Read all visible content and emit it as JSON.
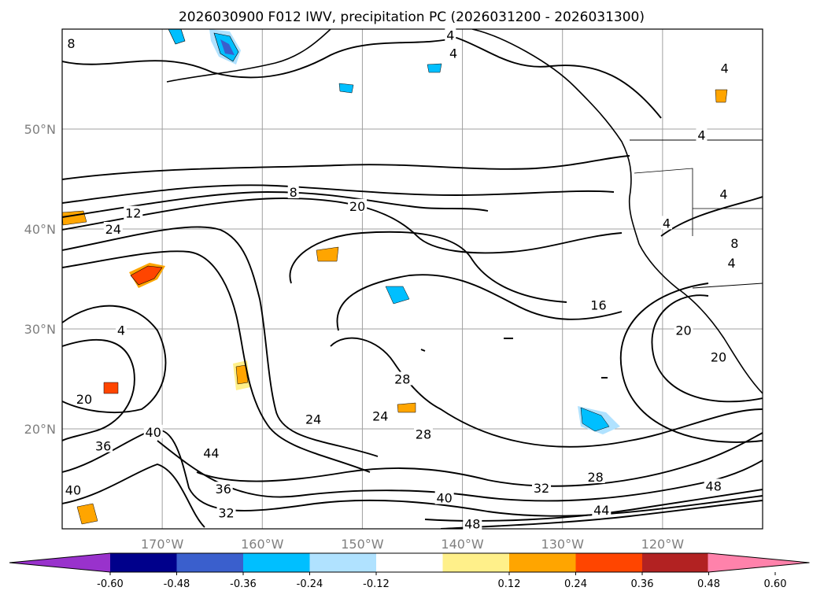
{
  "chart_data": {
    "type": "contour-map",
    "title": "2026030900 F012 IWV, precipitation PC (2026031200 - 2026031300)",
    "map": {
      "lon_range": [
        -180,
        -110
      ],
      "lat_range": [
        10,
        60
      ],
      "lon_ticks": [
        -170,
        -160,
        -150,
        -140,
        -130,
        -120
      ],
      "lat_ticks": [
        20,
        30,
        40,
        50
      ],
      "lon_tick_labels": [
        "170°W",
        "160°W",
        "150°W",
        "140°W",
        "130°W",
        "120°W"
      ],
      "lat_tick_labels": [
        "20°N",
        "30°N",
        "40°N",
        "50°N"
      ],
      "grid": true
    },
    "iwv_contour_labels": [
      {
        "text": "8",
        "lon": -179.1,
        "lat": 58.6
      },
      {
        "text": "4",
        "lon": -141.2,
        "lat": 59.4
      },
      {
        "text": "4",
        "lon": -140.9,
        "lat": 57.6
      },
      {
        "text": "4",
        "lon": -113.8,
        "lat": 56.1
      },
      {
        "text": "4",
        "lon": -116.1,
        "lat": 49.4
      },
      {
        "text": "4",
        "lon": -113.9,
        "lat": 43.5
      },
      {
        "text": "4",
        "lon": -119.6,
        "lat": 40.6
      },
      {
        "text": "8",
        "lon": -112.8,
        "lat": 38.6
      },
      {
        "text": "4",
        "lon": -113.1,
        "lat": 36.6
      },
      {
        "text": "8",
        "lon": -156.9,
        "lat": 43.7
      },
      {
        "text": "20",
        "lon": -150.5,
        "lat": 42.3
      },
      {
        "text": "12",
        "lon": -172.9,
        "lat": 41.6
      },
      {
        "text": "24",
        "lon": -174.9,
        "lat": 40.0
      },
      {
        "text": "16",
        "lon": -126.4,
        "lat": 32.4
      },
      {
        "text": "20",
        "lon": -117.9,
        "lat": 29.9
      },
      {
        "text": "20",
        "lon": -114.4,
        "lat": 27.2
      },
      {
        "text": "4",
        "lon": -174.1,
        "lat": 29.9
      },
      {
        "text": "28",
        "lon": -146.0,
        "lat": 25.0
      },
      {
        "text": "20",
        "lon": -177.8,
        "lat": 23.0
      },
      {
        "text": "24",
        "lon": -154.9,
        "lat": 21.0
      },
      {
        "text": "24",
        "lon": -148.2,
        "lat": 21.3
      },
      {
        "text": "28",
        "lon": -143.9,
        "lat": 19.5
      },
      {
        "text": "40",
        "lon": -170.9,
        "lat": 19.7
      },
      {
        "text": "36",
        "lon": -175.9,
        "lat": 18.3
      },
      {
        "text": "44",
        "lon": -165.1,
        "lat": 17.6
      },
      {
        "text": "36",
        "lon": -163.9,
        "lat": 14.0
      },
      {
        "text": "40",
        "lon": -178.9,
        "lat": 13.9
      },
      {
        "text": "32",
        "lon": -163.6,
        "lat": 11.6
      },
      {
        "text": "40",
        "lon": -141.8,
        "lat": 13.1
      },
      {
        "text": "32",
        "lon": -132.1,
        "lat": 14.1
      },
      {
        "text": "28",
        "lon": -126.7,
        "lat": 15.2
      },
      {
        "text": "44",
        "lon": -126.1,
        "lat": 11.9
      },
      {
        "text": "48",
        "lon": -139.0,
        "lat": 10.5
      },
      {
        "text": "48",
        "lon": -114.9,
        "lat": 14.3
      }
    ],
    "colorbar": {
      "ticks": [
        "-0.60",
        "-0.48",
        "-0.36",
        "-0.24",
        "-0.12",
        "0.12",
        "0.24",
        "0.36",
        "0.48",
        "0.60"
      ],
      "levels": [
        -0.72,
        -0.6,
        -0.48,
        -0.36,
        -0.24,
        -0.12,
        0.12,
        0.24,
        0.36,
        0.48,
        0.6,
        0.72
      ],
      "colors": [
        "#9932cc",
        "#00008b",
        "#3a5fcd",
        "#00bfff",
        "#b0e2ff",
        "#ffffff",
        "#fff08a",
        "#ffa500",
        "#ff4500",
        "#b22222",
        "#ff82ab"
      ],
      "extend": "both"
    }
  }
}
